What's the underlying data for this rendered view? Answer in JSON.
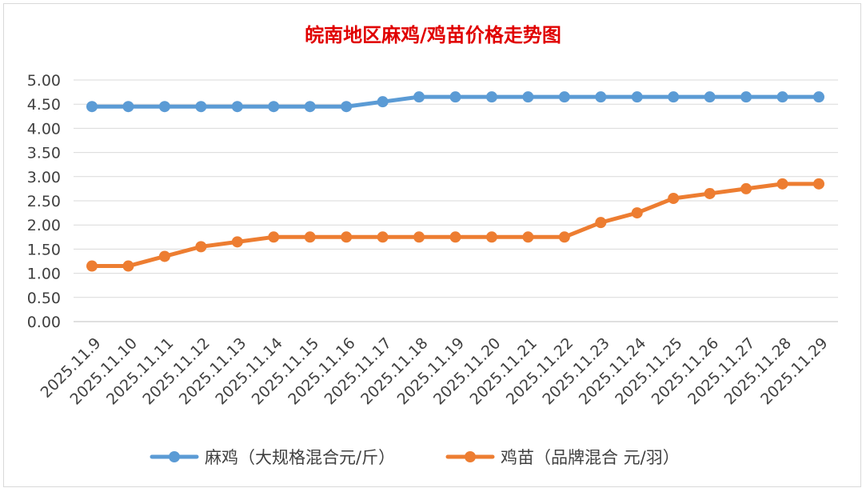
{
  "chart_data": {
    "type": "line",
    "title": "皖南地区麻鸡/鸡苗价格走势图",
    "xlabel": "",
    "ylabel": "",
    "ylim": [
      0,
      5
    ],
    "ytick_labels": [
      "0.00",
      "0.50",
      "1.00",
      "1.50",
      "2.00",
      "2.50",
      "3.00",
      "3.50",
      "4.00",
      "4.50",
      "5.00"
    ],
    "grid": true,
    "legend_position": "bottom",
    "categories": [
      "2025.11.9",
      "2025.11.10",
      "2025.11.11",
      "2025.11.12",
      "2025.11.13",
      "2025.11.14",
      "2025.11.15",
      "2025.11.16",
      "2025.11.17",
      "2025.11.18",
      "2025.11.19",
      "2025.11.20",
      "2025.11.21",
      "2025.11.22",
      "2025.11.23",
      "2025.11.24",
      "2025.11.25",
      "2025.11.26",
      "2025.11.27",
      "2025.11.28",
      "2025.11.29"
    ],
    "series": [
      {
        "name": "麻鸡（大规格混合元/斤）",
        "color": "#5b9bd5",
        "values": [
          4.45,
          4.45,
          4.45,
          4.45,
          4.45,
          4.45,
          4.45,
          4.45,
          4.55,
          4.65,
          4.65,
          4.65,
          4.65,
          4.65,
          4.65,
          4.65,
          4.65,
          4.65,
          4.65,
          4.65,
          4.65
        ]
      },
      {
        "name": "鸡苗（品牌混合 元/羽）",
        "color": "#ed7d31",
        "values": [
          1.15,
          1.15,
          1.35,
          1.55,
          1.65,
          1.75,
          1.75,
          1.75,
          1.75,
          1.75,
          1.75,
          1.75,
          1.75,
          1.75,
          2.05,
          2.25,
          2.55,
          2.65,
          2.75,
          2.85,
          2.85
        ]
      }
    ]
  }
}
